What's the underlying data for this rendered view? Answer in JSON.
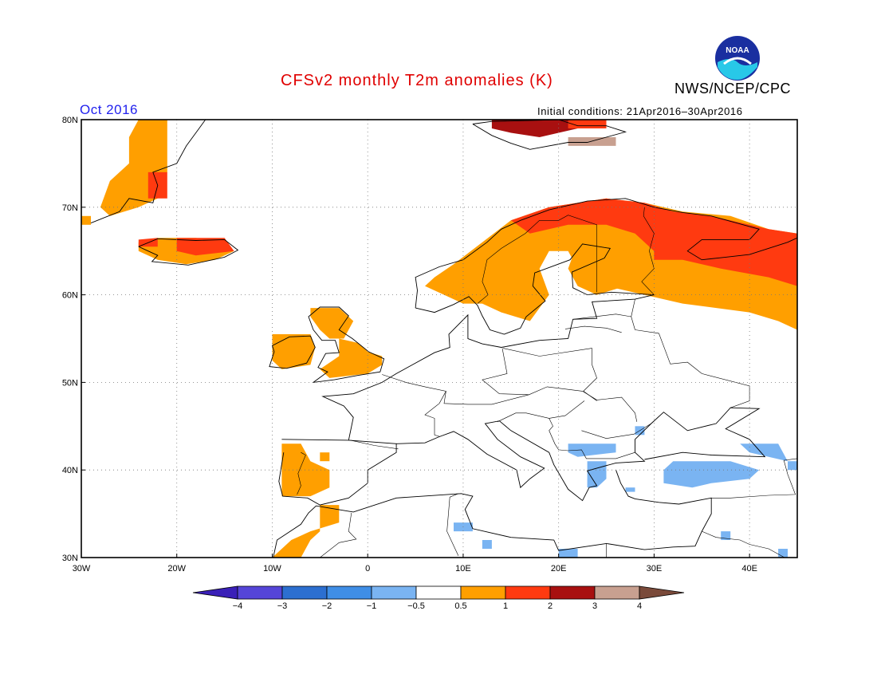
{
  "header": {
    "title": "CFSv2 monthly T2m anomalies (K)",
    "agency": "NWS/NCEP/CPC",
    "logo_text": "NOAA",
    "period": "Oct 2016",
    "initial_conditions": "Initial conditions: 21Apr2016–30Apr2016"
  },
  "map": {
    "lon_range": [
      -30,
      45
    ],
    "lat_range": [
      30,
      80
    ],
    "lon_ticks": [
      {
        "value": -30,
        "label": "30W"
      },
      {
        "value": -20,
        "label": "20W"
      },
      {
        "value": -10,
        "label": "10W"
      },
      {
        "value": 0,
        "label": "0"
      },
      {
        "value": 10,
        "label": "10E"
      },
      {
        "value": 20,
        "label": "20E"
      },
      {
        "value": 30,
        "label": "30E"
      },
      {
        "value": 40,
        "label": "40E"
      }
    ],
    "lat_ticks": [
      {
        "value": 30,
        "label": "30N"
      },
      {
        "value": 40,
        "label": "40N"
      },
      {
        "value": 50,
        "label": "50N"
      },
      {
        "value": 60,
        "label": "60N"
      },
      {
        "value": 70,
        "label": "70N"
      },
      {
        "value": 80,
        "label": "80N"
      }
    ],
    "grid": true,
    "anomaly_regions": [
      {
        "name": "greenland-coast",
        "class": "0.5-1",
        "poly": [
          [
            -24,
            80
          ],
          [
            -21,
            80
          ],
          [
            -21,
            74
          ],
          [
            -22,
            71
          ],
          [
            -24,
            70
          ],
          [
            -27,
            69
          ],
          [
            -28,
            70
          ],
          [
            -27,
            73
          ],
          [
            -25,
            75
          ],
          [
            -25,
            78
          ]
        ]
      },
      {
        "name": "greenland-coast-warm",
        "class": "1-2",
        "poly": [
          [
            -23,
            74
          ],
          [
            -21,
            74
          ],
          [
            -21,
            71
          ],
          [
            -23,
            71
          ]
        ]
      },
      {
        "name": "greenland-tip",
        "class": "0.5-1",
        "poly": [
          [
            -30,
            69
          ],
          [
            -29,
            69
          ],
          [
            -29,
            68
          ],
          [
            -30,
            68
          ]
        ]
      },
      {
        "name": "iceland",
        "class": "0.5-1",
        "poly": [
          [
            -24,
            66
          ],
          [
            -22,
            66.5
          ],
          [
            -18,
            66.5
          ],
          [
            -15,
            66
          ],
          [
            -14,
            65
          ],
          [
            -16,
            64
          ],
          [
            -19,
            63.5
          ],
          [
            -22,
            64
          ],
          [
            -24,
            65
          ]
        ]
      },
      {
        "name": "iceland-east",
        "class": "1-2",
        "poly": [
          [
            -20,
            66.5
          ],
          [
            -15,
            66.5
          ],
          [
            -14,
            65
          ],
          [
            -18,
            64.5
          ],
          [
            -20,
            65
          ]
        ]
      },
      {
        "name": "iceland-nw",
        "class": "1-2",
        "poly": [
          [
            -24,
            66.3
          ],
          [
            -22,
            66.5
          ],
          [
            -22,
            65.5
          ],
          [
            -24,
            65.5
          ]
        ]
      },
      {
        "name": "svalbard",
        "class": "2-3",
        "poly": [
          [
            13,
            80
          ],
          [
            21,
            80
          ],
          [
            22,
            79
          ],
          [
            18,
            78
          ],
          [
            15,
            78.5
          ],
          [
            13,
            79
          ]
        ]
      },
      {
        "name": "svalbard-east",
        "class": "3-4",
        "poly": [
          [
            21,
            78
          ],
          [
            26,
            78
          ],
          [
            26,
            77
          ],
          [
            21,
            77
          ]
        ]
      },
      {
        "name": "scandinavia-russia",
        "class": "0.5-1",
        "poly": [
          [
            7,
            62
          ],
          [
            9,
            63.5
          ],
          [
            12,
            66
          ],
          [
            15,
            68.5
          ],
          [
            19,
            70
          ],
          [
            25,
            71
          ],
          [
            29,
            70.5
          ],
          [
            33,
            69.5
          ],
          [
            38,
            69
          ],
          [
            42,
            67.5
          ],
          [
            45,
            67
          ],
          [
            45,
            56
          ],
          [
            43,
            57
          ],
          [
            40,
            58
          ],
          [
            33,
            59
          ],
          [
            29,
            60
          ],
          [
            25,
            61
          ],
          [
            22,
            63
          ],
          [
            21,
            65
          ],
          [
            19,
            65
          ],
          [
            18,
            63
          ],
          [
            19,
            60
          ],
          [
            17,
            57
          ],
          [
            14,
            58
          ],
          [
            12,
            59
          ],
          [
            10,
            59
          ],
          [
            8,
            60
          ],
          [
            6,
            61
          ]
        ]
      },
      {
        "name": "baltic-ring",
        "class": "0.5-1",
        "poly": [
          [
            22,
            66
          ],
          [
            25,
            66
          ],
          [
            27,
            65
          ],
          [
            28,
            63
          ],
          [
            27,
            61
          ],
          [
            24,
            60
          ],
          [
            22,
            61
          ],
          [
            21,
            63
          ]
        ]
      },
      {
        "name": "norway-north-warm",
        "class": "1-2",
        "poly": [
          [
            15,
            68.5
          ],
          [
            19,
            70
          ],
          [
            25,
            71
          ],
          [
            29,
            70.5
          ],
          [
            32,
            69.5
          ],
          [
            36,
            69
          ],
          [
            42,
            67.5
          ],
          [
            45,
            67
          ],
          [
            45,
            61
          ],
          [
            42,
            62
          ],
          [
            37,
            63
          ],
          [
            33,
            64
          ],
          [
            30,
            65
          ],
          [
            28,
            67
          ],
          [
            25,
            68
          ],
          [
            21,
            68
          ],
          [
            17,
            67
          ]
        ]
      },
      {
        "name": "svalbard-warm",
        "class": "1-2",
        "poly": [
          [
            21,
            80
          ],
          [
            25,
            80
          ],
          [
            25,
            79
          ],
          [
            21,
            79
          ]
        ]
      },
      {
        "name": "kola-warm",
        "class": "1-2",
        "poly": [
          [
            30,
            66
          ],
          [
            33,
            66
          ],
          [
            33,
            64
          ],
          [
            30,
            64
          ]
        ]
      },
      {
        "name": "scotland",
        "class": "0.5-1",
        "poly": [
          [
            -6,
            58.5
          ],
          [
            -3,
            58.5
          ],
          [
            -1.5,
            57
          ],
          [
            -2.5,
            55
          ],
          [
            -4,
            55
          ],
          [
            -5,
            56
          ],
          [
            -6,
            57.5
          ]
        ]
      },
      {
        "name": "ireland",
        "class": "0.5-1",
        "poly": [
          [
            -10,
            55.5
          ],
          [
            -6,
            55.5
          ],
          [
            -5.5,
            54
          ],
          [
            -6,
            52
          ],
          [
            -9,
            51.5
          ],
          [
            -10,
            52.5
          ]
        ]
      },
      {
        "name": "england",
        "class": "0.5-1",
        "poly": [
          [
            -3,
            55
          ],
          [
            -1,
            54.5
          ],
          [
            0,
            53.5
          ],
          [
            1.5,
            53
          ],
          [
            1.5,
            52
          ],
          [
            0,
            51
          ],
          [
            -4,
            50.5
          ],
          [
            -5,
            51.5
          ],
          [
            -3,
            53
          ]
        ]
      },
      {
        "name": "portugal-spain",
        "class": "0.5-1",
        "poly": [
          [
            -9,
            43
          ],
          [
            -7,
            43
          ],
          [
            -6,
            41
          ],
          [
            -4,
            40
          ],
          [
            -4,
            38
          ],
          [
            -6,
            37
          ],
          [
            -9,
            37
          ],
          [
            -9,
            39
          ]
        ]
      },
      {
        "name": "spain-dot",
        "class": "0.5-1",
        "poly": [
          [
            -5,
            42
          ],
          [
            -4,
            42
          ],
          [
            -4,
            41
          ],
          [
            -5,
            41
          ]
        ]
      },
      {
        "name": "morocco",
        "class": "0.5-1",
        "poly": [
          [
            -5,
            36
          ],
          [
            -3,
            36
          ],
          [
            -3,
            34
          ],
          [
            -6,
            33
          ],
          [
            -8,
            32
          ],
          [
            -10,
            30
          ],
          [
            -7,
            30
          ],
          [
            -6,
            32
          ],
          [
            -5,
            33
          ]
        ]
      },
      {
        "name": "balkans-cool",
        "class": "-1--0.5",
        "poly": [
          [
            21,
            43
          ],
          [
            26,
            43
          ],
          [
            26,
            42
          ],
          [
            22,
            41.5
          ],
          [
            21,
            42
          ]
        ]
      },
      {
        "name": "greece-cool",
        "class": "-1--0.5",
        "poly": [
          [
            23,
            41
          ],
          [
            25,
            41
          ],
          [
            25,
            39
          ],
          [
            24,
            38
          ],
          [
            23,
            38
          ]
        ]
      },
      {
        "name": "turkey-cool",
        "class": "-1--0.5",
        "poly": [
          [
            32,
            41
          ],
          [
            38,
            41
          ],
          [
            41,
            40
          ],
          [
            40,
            39
          ],
          [
            36,
            38.5
          ],
          [
            34,
            38
          ],
          [
            31,
            38.5
          ],
          [
            31,
            40
          ]
        ]
      },
      {
        "name": "caucasus-cool",
        "class": "-1--0.5",
        "poly": [
          [
            39,
            43
          ],
          [
            43,
            43
          ],
          [
            44,
            41
          ],
          [
            42,
            41.5
          ],
          [
            40,
            42
          ]
        ]
      },
      {
        "name": "black-sea-east",
        "class": "-1--0.5",
        "poly": [
          [
            44,
            41
          ],
          [
            45,
            41
          ],
          [
            45,
            40
          ],
          [
            44,
            40
          ]
        ]
      },
      {
        "name": "sicily-cool",
        "class": "-1--0.5",
        "poly": [
          [
            9,
            34
          ],
          [
            11,
            34
          ],
          [
            11,
            33
          ],
          [
            9,
            33
          ]
        ]
      },
      {
        "name": "tunisia-cool",
        "class": "-1--0.5",
        "poly": [
          [
            12,
            32
          ],
          [
            13,
            32
          ],
          [
            13,
            31
          ],
          [
            12,
            31
          ]
        ]
      },
      {
        "name": "egypt-cool",
        "class": "-1--0.5",
        "poly": [
          [
            20,
            31
          ],
          [
            22,
            31
          ],
          [
            22,
            30
          ],
          [
            20,
            30
          ]
        ]
      },
      {
        "name": "levant-cool",
        "class": "-1--0.5",
        "poly": [
          [
            37,
            33
          ],
          [
            38,
            33
          ],
          [
            38,
            32
          ],
          [
            37,
            32
          ]
        ]
      },
      {
        "name": "arabia-cool",
        "class": "-1--0.5",
        "poly": [
          [
            43,
            31
          ],
          [
            44,
            31
          ],
          [
            44,
            30
          ],
          [
            43,
            30
          ]
        ]
      },
      {
        "name": "crimea-cool",
        "class": "-1--0.5",
        "poly": [
          [
            28,
            45
          ],
          [
            29,
            45
          ],
          [
            29,
            44
          ],
          [
            28,
            44
          ]
        ]
      },
      {
        "name": "turkey-west-cool",
        "class": "-1--0.5",
        "poly": [
          [
            27,
            38
          ],
          [
            28,
            38
          ],
          [
            28,
            37.5
          ],
          [
            27,
            37.5
          ]
        ]
      }
    ]
  },
  "colorbar": {
    "labels": [
      "−4",
      "−3",
      "−2",
      "−1",
      "−0.5",
      "0.5",
      "1",
      "2",
      "3",
      "4"
    ],
    "colors": [
      "#3a20b8",
      "#5545d8",
      "#2c6fd0",
      "#3f8ee6",
      "#7ab4f2",
      "#ffffff",
      "#ff9f00",
      "#ff3a10",
      "#a81010",
      "#c8a090",
      "#7a4a3a"
    ],
    "class_colors": {
      "0.5-1": "#ff9f00",
      "1-2": "#ff3a10",
      "2-3": "#a81010",
      "3-4": "#c8a090",
      "-1--0.5": "#7ab4f2"
    }
  }
}
